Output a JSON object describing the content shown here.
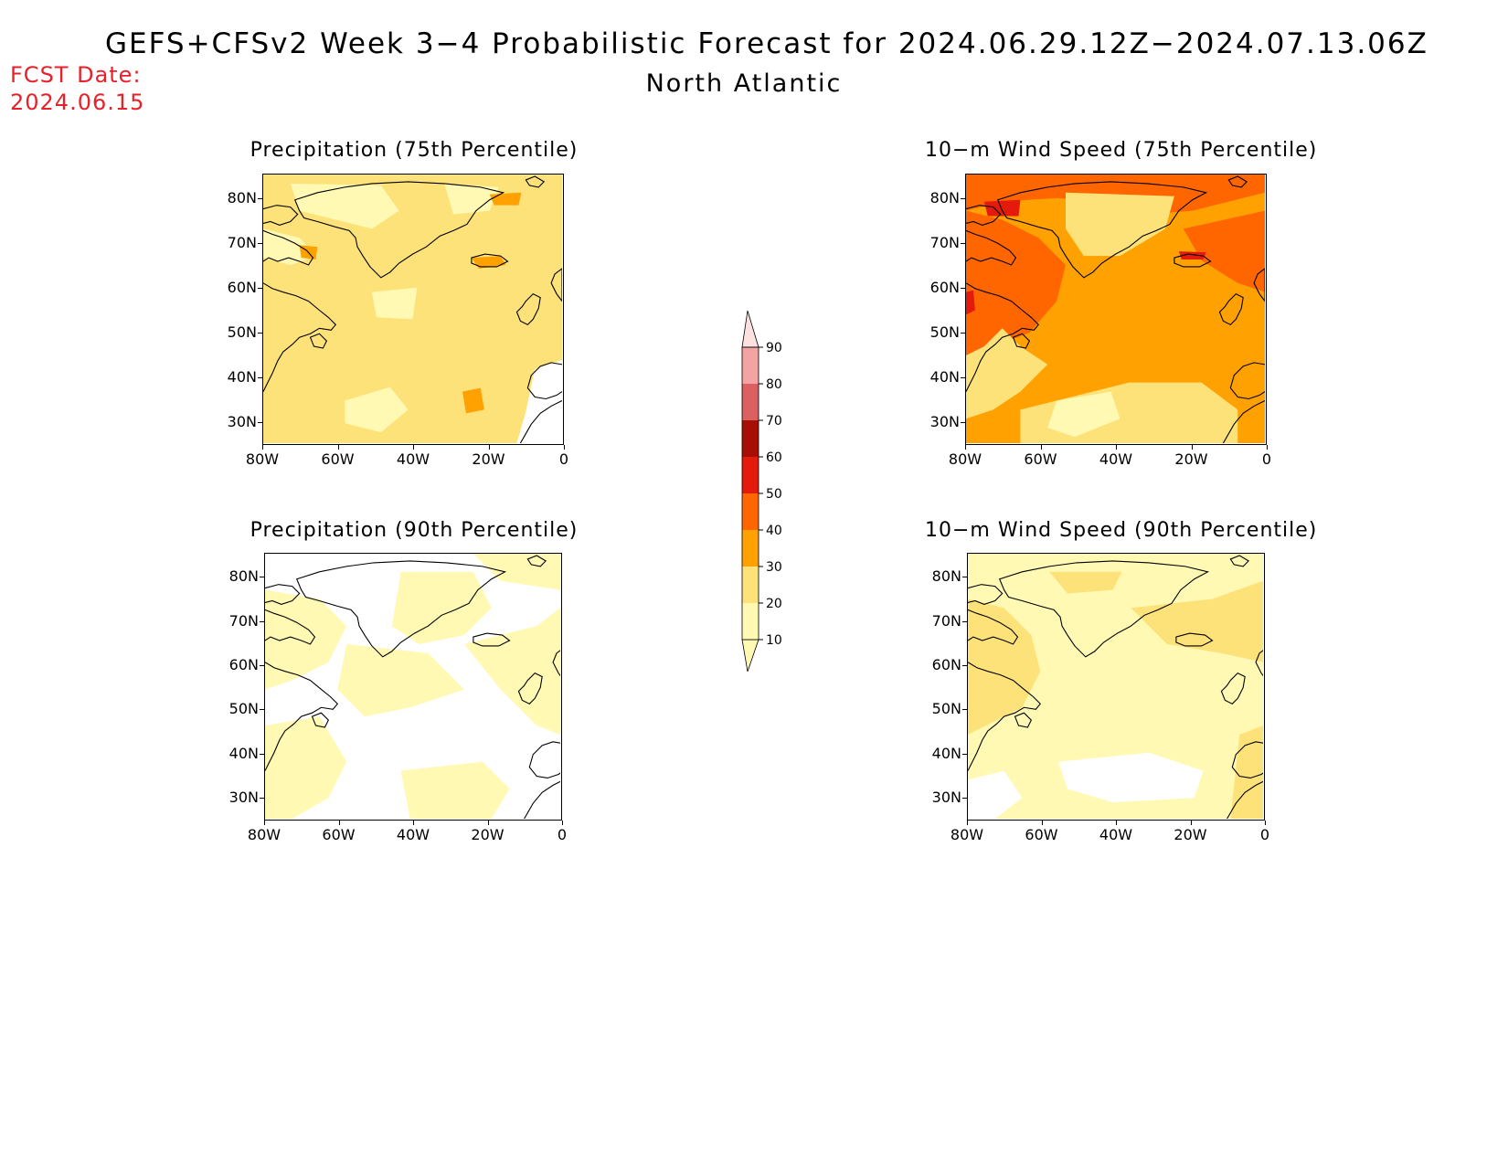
{
  "header": {
    "title": "GEFS+CFSv2 Week 3−4 Probabilistic Forecast for 2024.06.29.12Z−2024.07.13.06Z",
    "region": "North Atlantic",
    "fcst_label": "FCST Date:",
    "fcst_date": "2024.06.15"
  },
  "axes": {
    "lat_ticks": [
      "80N",
      "70N",
      "60N",
      "50N",
      "40N",
      "30N"
    ],
    "lon_ticks": [
      "80W",
      "60W",
      "40W",
      "20W",
      "0"
    ]
  },
  "panels": [
    {
      "id": "precip-75",
      "title": "Precipitation (75th Percentile)",
      "field": "precip75",
      "base_color": "#fde27a"
    },
    {
      "id": "wind-75",
      "title": "10−m Wind Speed (75th Percentile)",
      "field": "wind75",
      "base_color": "#ff9e00"
    },
    {
      "id": "precip-90",
      "title": "Precipitation (90th Percentile)",
      "field": "precip90",
      "base_color": "#ffffff"
    },
    {
      "id": "wind-90",
      "title": "10−m Wind Speed (90th Percentile)",
      "field": "wind90",
      "base_color": "#fff5b0"
    }
  ],
  "colorbar": {
    "levels": [
      {
        "label": "10",
        "color": "#fff9b3"
      },
      {
        "label": "20",
        "color": "#fde27a"
      },
      {
        "label": "30",
        "color": "#ffa100"
      },
      {
        "label": "40",
        "color": "#ff6600"
      },
      {
        "label": "50",
        "color": "#e31a0c"
      },
      {
        "label": "60",
        "color": "#a50f04"
      },
      {
        "label": "70",
        "color": "#dd6060"
      },
      {
        "label": "80",
        "color": "#f4a3a3"
      },
      {
        "label": "90",
        "color": "#fde0e0"
      }
    ]
  }
}
